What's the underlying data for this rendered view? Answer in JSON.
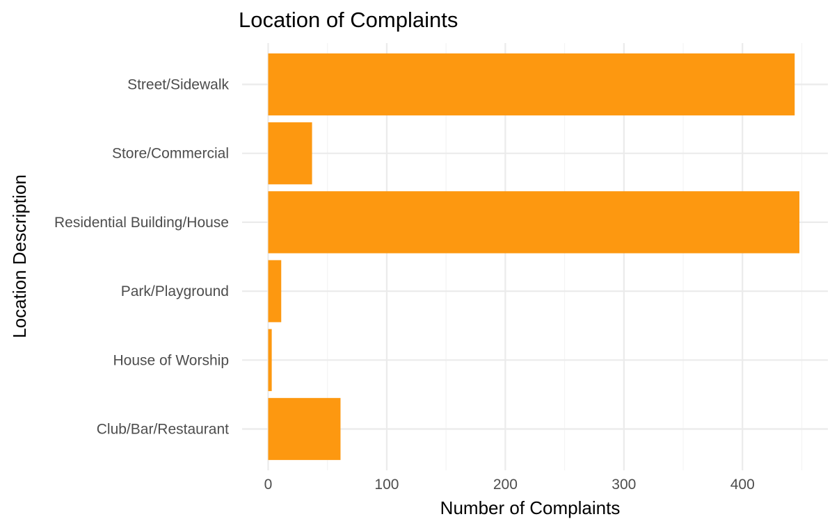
{
  "chart_data": {
    "type": "bar",
    "orientation": "horizontal",
    "title": "Location of Complaints",
    "xlabel": "Number of Complaints",
    "ylabel": "Location Description",
    "categories": [
      "Club/Bar/Restaurant",
      "House of Worship",
      "Park/Playground",
      "Residential Building/House",
      "Store/Commercial",
      "Street/Sidewalk"
    ],
    "values": [
      61,
      3,
      11,
      448,
      37,
      444
    ],
    "xlim": [
      -22,
      472
    ],
    "x_ticks": [
      0,
      100,
      200,
      300,
      400
    ],
    "x_tick_labels": [
      "0",
      "100",
      "200",
      "300",
      "400"
    ],
    "grid": true,
    "legend": "none",
    "bar_color": "#fd9810"
  }
}
